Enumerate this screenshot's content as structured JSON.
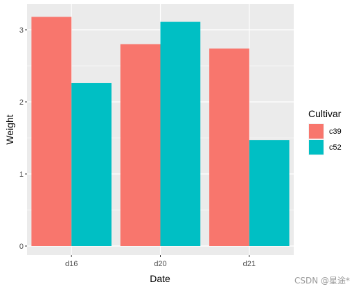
{
  "chart_data": {
    "type": "bar",
    "categories": [
      "d16",
      "d20",
      "d21"
    ],
    "series": [
      {
        "name": "c39",
        "values": [
          3.18,
          2.8,
          2.74
        ],
        "color": "#F8766D"
      },
      {
        "name": "c52",
        "values": [
          2.26,
          3.11,
          1.47
        ],
        "color": "#00BFC4"
      }
    ],
    "xlabel": "Date",
    "ylabel": "Weight",
    "ylim": [
      0,
      3.35
    ],
    "yticks": [
      0,
      1,
      2,
      3
    ],
    "grid": true,
    "panel_background": "#EBEBEB",
    "legend": {
      "title": "Cultivar",
      "placement": "right"
    }
  },
  "watermark": "CSDN @星途*"
}
